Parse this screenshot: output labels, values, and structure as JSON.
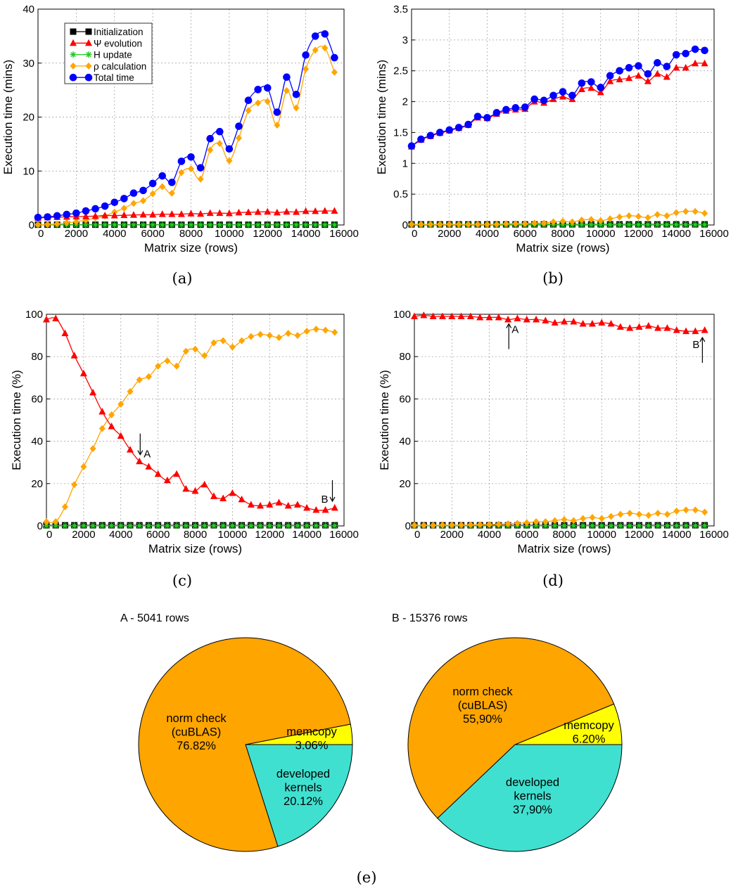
{
  "figure": {
    "captions": [
      "(a)",
      "(b)",
      "(c)",
      "(d)",
      "(e)"
    ]
  },
  "legend": [
    {
      "label": "Initialization",
      "color": "#000000",
      "marker": "square"
    },
    {
      "label": "Ψ evolution",
      "color": "#ff0000",
      "marker": "triangle"
    },
    {
      "label": "H update",
      "color": "#22cc22",
      "marker": "star"
    },
    {
      "label": "ρ calculation",
      "color": "#ffa500",
      "marker": "diamond"
    },
    {
      "label": "Total time",
      "color": "#0000ff",
      "marker": "circle"
    }
  ],
  "chart_data": [
    {
      "id": "a",
      "type": "line",
      "xlabel": "Matrix size (rows)",
      "ylabel": "Execution time (mins)",
      "xlim": [
        0,
        16000
      ],
      "ylim": [
        0,
        40
      ],
      "xticks": [
        0,
        2000,
        4000,
        6000,
        8000,
        10000,
        12000,
        14000,
        16000
      ],
      "yticks": [
        0,
        10,
        20,
        30,
        40
      ],
      "grid": true,
      "legend_position": "top-left",
      "x": [
        0,
        500,
        1000,
        1500,
        2000,
        2500,
        3000,
        3500,
        4000,
        4500,
        5000,
        5500,
        6000,
        6500,
        7000,
        7500,
        8000,
        8500,
        9000,
        9500,
        10000,
        10500,
        11000,
        11500,
        12000,
        12500,
        13000,
        13500,
        14000,
        14500,
        15000,
        15500
      ],
      "series": [
        {
          "name": "Initialization",
          "color": "#000000",
          "marker": "square",
          "values": [
            0.05,
            0.05,
            0.05,
            0.05,
            0.05,
            0.05,
            0.05,
            0.05,
            0.05,
            0.05,
            0.05,
            0.05,
            0.05,
            0.05,
            0.05,
            0.05,
            0.05,
            0.05,
            0.05,
            0.05,
            0.05,
            0.05,
            0.05,
            0.05,
            0.05,
            0.05,
            0.05,
            0.05,
            0.05,
            0.05,
            0.05,
            0.05
          ]
        },
        {
          "name": "Ψ evolution",
          "color": "#ff0000",
          "marker": "triangle",
          "values": [
            1.3,
            1.38,
            1.45,
            1.5,
            1.55,
            1.6,
            1.65,
            1.75,
            1.75,
            1.8,
            1.85,
            1.9,
            1.9,
            2.0,
            2.0,
            2.0,
            2.1,
            2.05,
            2.2,
            2.2,
            2.15,
            2.3,
            2.35,
            2.4,
            2.45,
            2.3,
            2.45,
            2.4,
            2.55,
            2.55,
            2.6,
            2.6
          ]
        },
        {
          "name": "H update",
          "color": "#22cc22",
          "marker": "star",
          "values": [
            0.02,
            0.02,
            0.02,
            0.02,
            0.02,
            0.02,
            0.02,
            0.02,
            0.02,
            0.02,
            0.02,
            0.02,
            0.02,
            0.02,
            0.02,
            0.02,
            0.02,
            0.02,
            0.02,
            0.02,
            0.02,
            0.02,
            0.02,
            0.02,
            0.02,
            0.02,
            0.02,
            0.02,
            0.02,
            0.02,
            0.02,
            0.02
          ]
        },
        {
          "name": "ρ calculation",
          "color": "#ffa500",
          "marker": "diamond",
          "values": [
            0.05,
            0.1,
            0.2,
            0.4,
            0.6,
            0.9,
            1.3,
            1.7,
            2.4,
            3.1,
            4.0,
            4.5,
            5.8,
            7.1,
            5.9,
            9.7,
            10.4,
            8.5,
            13.9,
            15.1,
            11.9,
            16.1,
            21.2,
            22.6,
            22.9,
            18.5,
            24.9,
            21.7,
            28.9,
            32.4,
            32.8,
            28.3
          ]
        },
        {
          "name": "Total time",
          "color": "#0000ff",
          "marker": "circle",
          "values": [
            1.4,
            1.5,
            1.7,
            1.95,
            2.2,
            2.6,
            3.0,
            3.5,
            4.2,
            4.9,
            5.9,
            6.4,
            7.7,
            9.1,
            7.9,
            11.8,
            12.6,
            10.6,
            16.0,
            17.3,
            14.1,
            18.3,
            23.1,
            25.1,
            25.4,
            20.9,
            27.4,
            24.2,
            31.5,
            35.0,
            35.4,
            31.0
          ]
        }
      ]
    },
    {
      "id": "b",
      "type": "line",
      "xlabel": "Matrix size (rows)",
      "ylabel": "Execution time (mins)",
      "xlim": [
        0,
        16000
      ],
      "ylim": [
        0,
        3.5
      ],
      "xticks": [
        0,
        2000,
        4000,
        6000,
        8000,
        10000,
        12000,
        14000,
        16000
      ],
      "yticks": [
        0,
        0.5,
        1,
        1.5,
        2,
        2.5,
        3,
        3.5
      ],
      "grid": true,
      "x": [
        0,
        500,
        1000,
        1500,
        2000,
        2500,
        3000,
        3500,
        4000,
        4500,
        5000,
        5500,
        6000,
        6500,
        7000,
        7500,
        8000,
        8500,
        9000,
        9500,
        10000,
        10500,
        11000,
        11500,
        12000,
        12500,
        13000,
        13500,
        14000,
        14500,
        15000,
        15500
      ],
      "series": [
        {
          "name": "Initialization",
          "color": "#000000",
          "marker": "square",
          "values": [
            0.01,
            0.01,
            0.01,
            0.01,
            0.01,
            0.01,
            0.01,
            0.01,
            0.01,
            0.01,
            0.01,
            0.01,
            0.01,
            0.01,
            0.01,
            0.01,
            0.01,
            0.01,
            0.01,
            0.01,
            0.01,
            0.01,
            0.01,
            0.01,
            0.01,
            0.01,
            0.01,
            0.01,
            0.01,
            0.01,
            0.01,
            0.01
          ]
        },
        {
          "name": "Ψ evolution",
          "color": "#ff0000",
          "marker": "triangle",
          "values": [
            1.27,
            1.38,
            1.44,
            1.49,
            1.53,
            1.57,
            1.62,
            1.74,
            1.73,
            1.8,
            1.85,
            1.87,
            1.88,
            2.0,
            1.98,
            2.04,
            2.08,
            2.04,
            2.2,
            2.22,
            2.15,
            2.33,
            2.36,
            2.38,
            2.42,
            2.33,
            2.45,
            2.4,
            2.55,
            2.55,
            2.62,
            2.62
          ]
        },
        {
          "name": "H update",
          "color": "#22cc22",
          "marker": "star",
          "values": [
            0.005,
            0.005,
            0.005,
            0.005,
            0.005,
            0.005,
            0.005,
            0.005,
            0.005,
            0.005,
            0.005,
            0.005,
            0.005,
            0.005,
            0.005,
            0.005,
            0.005,
            0.005,
            0.005,
            0.005,
            0.005,
            0.005,
            0.005,
            0.005,
            0.005,
            0.005,
            0.005,
            0.005,
            0.005,
            0.005,
            0.005,
            0.005
          ]
        },
        {
          "name": "ρ calculation",
          "color": "#ffa500",
          "marker": "diamond",
          "values": [
            0.01,
            0.01,
            0.01,
            0.01,
            0.01,
            0.01,
            0.01,
            0.01,
            0.01,
            0.01,
            0.02,
            0.02,
            0.02,
            0.03,
            0.03,
            0.05,
            0.06,
            0.05,
            0.08,
            0.09,
            0.07,
            0.1,
            0.13,
            0.15,
            0.14,
            0.12,
            0.17,
            0.15,
            0.2,
            0.22,
            0.22,
            0.19
          ]
        },
        {
          "name": "Total time",
          "color": "#0000ff",
          "marker": "circle",
          "values": [
            1.28,
            1.39,
            1.45,
            1.5,
            1.54,
            1.58,
            1.63,
            1.76,
            1.74,
            1.82,
            1.87,
            1.9,
            1.91,
            2.04,
            2.02,
            2.1,
            2.16,
            2.1,
            2.3,
            2.32,
            2.23,
            2.42,
            2.5,
            2.55,
            2.58,
            2.45,
            2.63,
            2.57,
            2.76,
            2.78,
            2.85,
            2.83
          ]
        }
      ]
    },
    {
      "id": "c",
      "type": "line",
      "xlabel": "Matrix size (rows)",
      "ylabel": "Execution time (%)",
      "xlim": [
        0,
        16000
      ],
      "ylim": [
        0,
        100
      ],
      "xticks": [
        0,
        2000,
        4000,
        6000,
        8000,
        10000,
        12000,
        14000,
        16000
      ],
      "yticks": [
        0,
        20,
        40,
        60,
        80,
        100
      ],
      "grid": true,
      "x": [
        0,
        500,
        1000,
        1500,
        2000,
        2500,
        3000,
        3500,
        4000,
        4500,
        5000,
        5500,
        6000,
        6500,
        7000,
        7500,
        8000,
        8500,
        9000,
        9500,
        10000,
        10500,
        11000,
        11500,
        12000,
        12500,
        13000,
        13500,
        14000,
        14500,
        15000,
        15500
      ],
      "annotations": [
        {
          "label": "A",
          "x": 5041,
          "y": 31,
          "arrow": "down"
        },
        {
          "label": "B",
          "x": 15376,
          "y": 9,
          "arrow": "down"
        }
      ],
      "series": [
        {
          "name": "Initialization",
          "color": "#000000",
          "marker": "square",
          "values": [
            0.3,
            0.3,
            0.3,
            0.3,
            0.3,
            0.3,
            0.3,
            0.3,
            0.3,
            0.3,
            0.3,
            0.3,
            0.3,
            0.3,
            0.3,
            0.3,
            0.3,
            0.3,
            0.3,
            0.3,
            0.3,
            0.3,
            0.3,
            0.3,
            0.3,
            0.3,
            0.3,
            0.3,
            0.3,
            0.3,
            0.3,
            0.3
          ]
        },
        {
          "name": "Ψ evolution",
          "color": "#ff0000",
          "marker": "triangle",
          "values": [
            97.5,
            98,
            91,
            80.5,
            72,
            63,
            54,
            47,
            42.5,
            36,
            30.5,
            28,
            24.5,
            21.5,
            24.5,
            17.5,
            16.5,
            19.5,
            14,
            13,
            15.5,
            12.5,
            10,
            9.5,
            10,
            11,
            9.5,
            10,
            8.5,
            7.5,
            7.5,
            8.5
          ]
        },
        {
          "name": "H update",
          "color": "#22cc22",
          "marker": "star",
          "values": [
            0.1,
            0.1,
            0.1,
            0.1,
            0.1,
            0.1,
            0.1,
            0.1,
            0.1,
            0.1,
            0.1,
            0.1,
            0.1,
            0.1,
            0.1,
            0.1,
            0.1,
            0.1,
            0.1,
            0.1,
            0.1,
            0.1,
            0.1,
            0.1,
            0.1,
            0.1,
            0.1,
            0.1,
            0.1,
            0.1,
            0.1,
            0.1
          ]
        },
        {
          "name": "ρ calculation",
          "color": "#ffa500",
          "marker": "diamond",
          "values": [
            2,
            2,
            9,
            19.5,
            28,
            36.5,
            46,
            52.5,
            57.5,
            63.5,
            69,
            70.5,
            75.5,
            78,
            75.5,
            82.5,
            83.5,
            80.5,
            86.5,
            87.5,
            84.5,
            87.5,
            89.5,
            90.5,
            90,
            89,
            91,
            90,
            92,
            93,
            92.5,
            91.5
          ]
        }
      ]
    },
    {
      "id": "d",
      "type": "line",
      "xlabel": "Matrix size (rows)",
      "ylabel": "Execution time (%)",
      "xlim": [
        0,
        16000
      ],
      "ylim": [
        0,
        100
      ],
      "xticks": [
        0,
        2000,
        4000,
        6000,
        8000,
        10000,
        12000,
        14000,
        16000
      ],
      "yticks": [
        0,
        20,
        40,
        60,
        80,
        100
      ],
      "grid": true,
      "x": [
        0,
        500,
        1000,
        1500,
        2000,
        2500,
        3000,
        3500,
        4000,
        4500,
        5000,
        5500,
        6000,
        6500,
        7000,
        7500,
        8000,
        8500,
        9000,
        9500,
        10000,
        10500,
        11000,
        11500,
        12000,
        12500,
        13000,
        13500,
        14000,
        14500,
        15000,
        15500
      ],
      "annotations": [
        {
          "label": "A",
          "x": 5041,
          "y": 97.5,
          "arrow": "up"
        },
        {
          "label": "B",
          "x": 15376,
          "y": 91,
          "arrow": "up"
        }
      ],
      "series": [
        {
          "name": "Initialization",
          "color": "#000000",
          "marker": "square",
          "values": [
            0.3,
            0.3,
            0.3,
            0.3,
            0.3,
            0.3,
            0.3,
            0.3,
            0.3,
            0.3,
            0.3,
            0.3,
            0.3,
            0.3,
            0.3,
            0.3,
            0.3,
            0.3,
            0.3,
            0.3,
            0.3,
            0.3,
            0.3,
            0.3,
            0.3,
            0.3,
            0.3,
            0.3,
            0.3,
            0.3,
            0.3,
            0.3
          ]
        },
        {
          "name": "Ψ evolution",
          "color": "#ff0000",
          "marker": "triangle",
          "values": [
            99,
            99.5,
            99,
            99,
            99,
            99,
            99,
            98.5,
            98.5,
            98.5,
            97.5,
            98,
            97.5,
            97.5,
            97,
            96,
            96.5,
            96.5,
            95.5,
            95.5,
            96,
            95.5,
            94,
            93.5,
            94,
            94.5,
            93.5,
            93.5,
            92.5,
            92,
            92,
            92.5
          ]
        },
        {
          "name": "H update",
          "color": "#22cc22",
          "marker": "star",
          "values": [
            0.1,
            0.1,
            0.1,
            0.1,
            0.1,
            0.1,
            0.1,
            0.1,
            0.1,
            0.1,
            0.1,
            0.1,
            0.1,
            0.1,
            0.1,
            0.1,
            0.1,
            0.1,
            0.1,
            0.1,
            0.1,
            0.1,
            0.1,
            0.1,
            0.1,
            0.1,
            0.1,
            0.1,
            0.1,
            0.1,
            0.1,
            0.1
          ]
        },
        {
          "name": "ρ calculation",
          "color": "#ffa500",
          "marker": "diamond",
          "values": [
            0.3,
            0.3,
            0.3,
            0.4,
            0.4,
            0.4,
            0.5,
            0.6,
            0.7,
            0.8,
            1,
            1.2,
            1.5,
            2,
            2,
            2.5,
            3,
            2.5,
            3.5,
            4,
            3.5,
            4.5,
            5.5,
            6,
            5.5,
            5,
            6,
            5.5,
            7,
            7.5,
            7.5,
            6.5
          ]
        }
      ]
    },
    {
      "id": "e1",
      "type": "pie",
      "title": "A - 5041 rows",
      "slices": [
        {
          "label": "memcopy",
          "value": 3.06,
          "display": "3.06%",
          "color": "#ffff00"
        },
        {
          "label": "developed kernels",
          "value": 20.12,
          "display": "20.12%",
          "color": "#40e0d0"
        },
        {
          "label": "norm check (cuBLAS)",
          "value": 76.82,
          "display": "76.82%",
          "color": "#ffa500"
        }
      ]
    },
    {
      "id": "e2",
      "type": "pie",
      "title": "B - 15376 rows",
      "slices": [
        {
          "label": "memcopy",
          "value": 6.2,
          "display": "6.20%",
          "color": "#ffff00"
        },
        {
          "label": "developed kernels",
          "value": 37.9,
          "display": "37,90%",
          "color": "#40e0d0"
        },
        {
          "label": "norm check (cuBLAS)",
          "value": 55.9,
          "display": "55,90%",
          "color": "#ffa500"
        }
      ]
    }
  ]
}
